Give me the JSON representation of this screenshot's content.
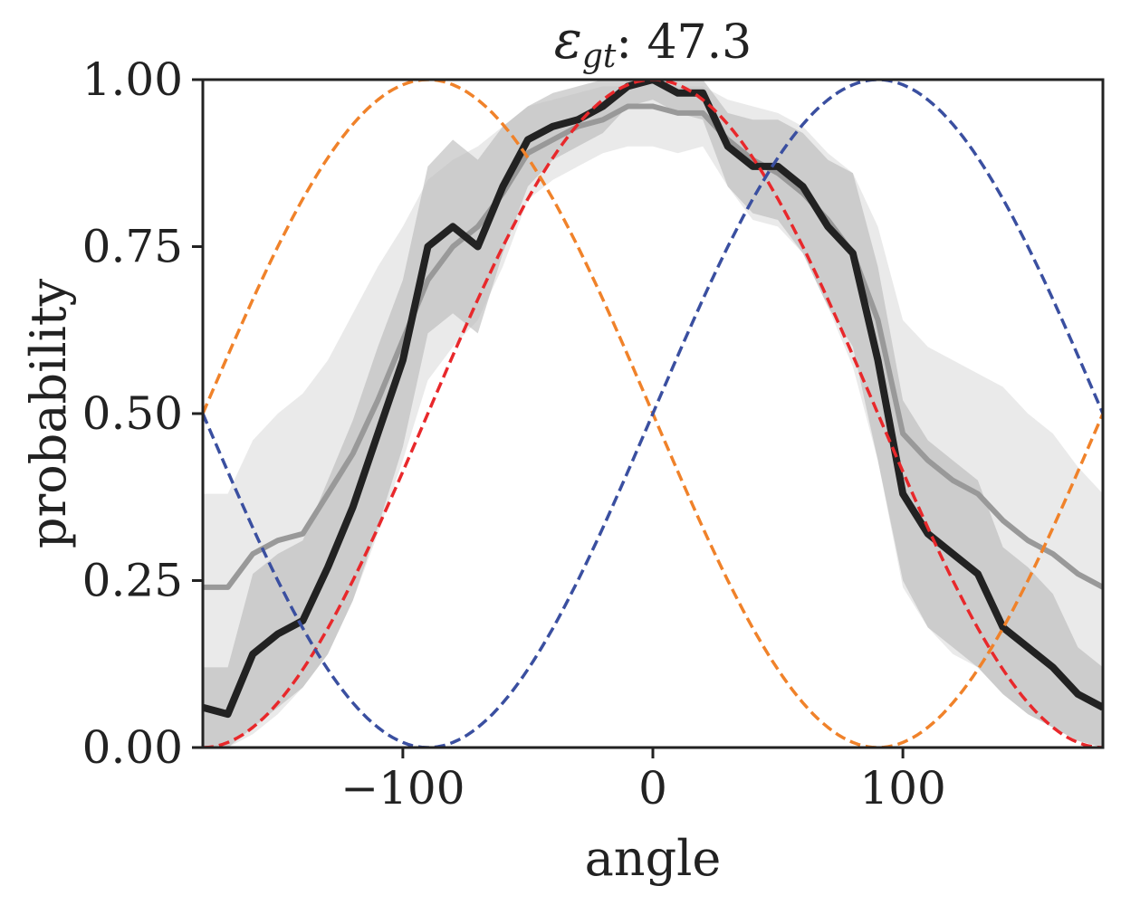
{
  "chart_data": {
    "type": "line",
    "title": {
      "symbol": "ε",
      "subscript": "gt",
      "value_text": ": 47.3"
    },
    "xlabel": "angle",
    "ylabel": "probability",
    "xlim": [
      -180,
      180
    ],
    "ylim": [
      0,
      1
    ],
    "xticks": [
      -100,
      0,
      100
    ],
    "xtick_labels": [
      "−100",
      "0",
      "100"
    ],
    "yticks": [
      0,
      0.25,
      0.5,
      0.75,
      1.0
    ],
    "ytick_labels": [
      "0.00",
      "0.25",
      "0.50",
      "0.75",
      "1.00"
    ],
    "grid": false,
    "legend": "none",
    "x": [
      -180,
      -170,
      -160,
      -150,
      -140,
      -130,
      -120,
      -110,
      -100,
      -90,
      -80,
      -70,
      -60,
      -50,
      -40,
      -30,
      -20,
      -10,
      0,
      10,
      20,
      30,
      40,
      50,
      60,
      70,
      80,
      90,
      100,
      110,
      120,
      130,
      140,
      150,
      160,
      170,
      180
    ],
    "series": [
      {
        "color": "#222222",
        "style": "solid-thick",
        "values": [
          0.06,
          0.05,
          0.14,
          0.17,
          0.19,
          0.27,
          0.36,
          0.47,
          0.58,
          0.75,
          0.78,
          0.75,
          0.84,
          0.91,
          0.93,
          0.94,
          0.96,
          0.99,
          1.0,
          0.98,
          0.98,
          0.9,
          0.87,
          0.87,
          0.84,
          0.78,
          0.74,
          0.58,
          0.38,
          0.32,
          0.29,
          0.26,
          0.18,
          0.15,
          0.12,
          0.08,
          0.06
        ],
        "band_lower": [
          0.0,
          0.0,
          0.03,
          0.06,
          0.09,
          0.14,
          0.22,
          0.33,
          0.45,
          0.62,
          0.65,
          0.62,
          0.74,
          0.84,
          0.88,
          0.9,
          0.92,
          0.96,
          0.97,
          0.95,
          0.94,
          0.84,
          0.8,
          0.79,
          0.74,
          0.66,
          0.6,
          0.43,
          0.25,
          0.18,
          0.15,
          0.12,
          0.08,
          0.05,
          0.03,
          0.01,
          0.0
        ],
        "band_upper": [
          0.12,
          0.12,
          0.26,
          0.29,
          0.31,
          0.4,
          0.49,
          0.6,
          0.7,
          0.87,
          0.91,
          0.88,
          0.93,
          0.96,
          0.98,
          0.99,
          1.0,
          1.0,
          1.0,
          1.0,
          1.0,
          0.95,
          0.94,
          0.94,
          0.92,
          0.88,
          0.86,
          0.72,
          0.52,
          0.46,
          0.43,
          0.4,
          0.3,
          0.27,
          0.23,
          0.15,
          0.12
        ]
      },
      {
        "color": "#999999",
        "style": "solid",
        "values": [
          0.24,
          0.24,
          0.29,
          0.31,
          0.32,
          0.38,
          0.44,
          0.52,
          0.61,
          0.7,
          0.75,
          0.78,
          0.83,
          0.89,
          0.91,
          0.93,
          0.94,
          0.96,
          0.96,
          0.95,
          0.95,
          0.91,
          0.88,
          0.86,
          0.83,
          0.79,
          0.74,
          0.64,
          0.47,
          0.43,
          0.4,
          0.38,
          0.34,
          0.31,
          0.29,
          0.26,
          0.24
        ],
        "band_lower": [
          0.0,
          0.0,
          0.02,
          0.05,
          0.09,
          0.14,
          0.22,
          0.32,
          0.43,
          0.55,
          0.6,
          0.64,
          0.72,
          0.82,
          0.85,
          0.87,
          0.89,
          0.9,
          0.9,
          0.89,
          0.9,
          0.84,
          0.79,
          0.78,
          0.74,
          0.66,
          0.57,
          0.43,
          0.24,
          0.18,
          0.14,
          0.12,
          0.08,
          0.05,
          0.03,
          0.01,
          0.0
        ],
        "band_upper": [
          0.38,
          0.38,
          0.46,
          0.5,
          0.53,
          0.58,
          0.65,
          0.72,
          0.78,
          0.85,
          0.88,
          0.9,
          0.93,
          0.96,
          0.97,
          0.98,
          0.99,
          0.99,
          1.0,
          0.99,
          0.99,
          0.97,
          0.96,
          0.95,
          0.93,
          0.89,
          0.86,
          0.78,
          0.64,
          0.6,
          0.58,
          0.56,
          0.54,
          0.5,
          0.47,
          0.42,
          0.38
        ]
      },
      {
        "color": "#e8282b",
        "style": "dashed",
        "function": "0.5*(1+cos(x))",
        "values": [
          0.0,
          0.008,
          0.03,
          0.067,
          0.117,
          0.179,
          0.25,
          0.329,
          0.413,
          0.5,
          0.587,
          0.671,
          0.75,
          0.821,
          0.883,
          0.933,
          0.97,
          0.992,
          1.0,
          0.992,
          0.97,
          0.933,
          0.883,
          0.821,
          0.75,
          0.671,
          0.587,
          0.5,
          0.413,
          0.329,
          0.25,
          0.179,
          0.117,
          0.067,
          0.03,
          0.008,
          0.0
        ]
      },
      {
        "color": "#f0822a",
        "style": "dashed",
        "function": "0.5*(1-sin(x))",
        "values": [
          0.5,
          0.587,
          0.671,
          0.75,
          0.821,
          0.883,
          0.933,
          0.97,
          0.992,
          1.0,
          0.992,
          0.97,
          0.933,
          0.883,
          0.821,
          0.75,
          0.671,
          0.587,
          0.5,
          0.413,
          0.329,
          0.25,
          0.179,
          0.117,
          0.067,
          0.03,
          0.008,
          0.0,
          0.008,
          0.03,
          0.067,
          0.117,
          0.179,
          0.25,
          0.329,
          0.413,
          0.5
        ]
      },
      {
        "color": "#3a4fa0",
        "style": "dashed",
        "function": "0.5*(1+sin(x))",
        "values": [
          0.5,
          0.413,
          0.329,
          0.25,
          0.179,
          0.117,
          0.067,
          0.03,
          0.008,
          0.0,
          0.008,
          0.03,
          0.067,
          0.117,
          0.179,
          0.25,
          0.329,
          0.413,
          0.5,
          0.587,
          0.671,
          0.75,
          0.821,
          0.883,
          0.933,
          0.97,
          0.992,
          1.0,
          0.992,
          0.97,
          0.933,
          0.883,
          0.821,
          0.75,
          0.671,
          0.587,
          0.5
        ]
      }
    ]
  }
}
